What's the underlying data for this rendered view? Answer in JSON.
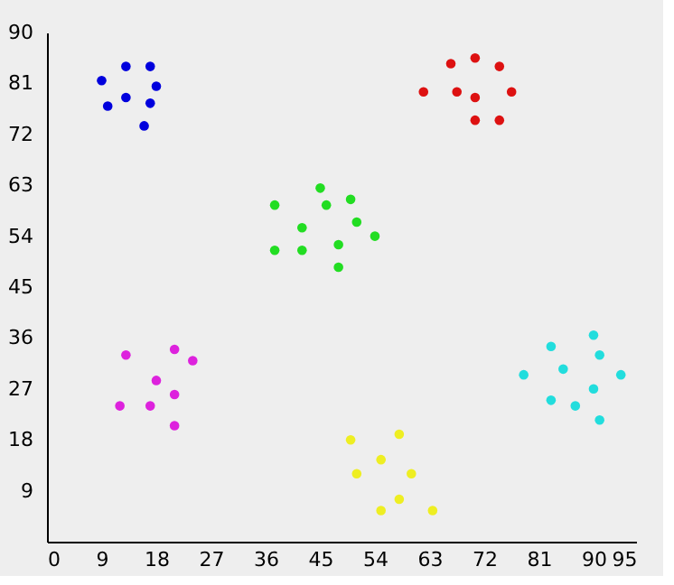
{
  "chart_data": {
    "type": "scatter",
    "marker": "circle",
    "grid": false,
    "legend": false,
    "xlim": [
      0,
      97
    ],
    "ylim": [
      0,
      90
    ],
    "xticks": [
      0,
      9,
      18,
      27,
      36,
      45,
      54,
      63,
      72,
      81,
      90,
      95
    ],
    "yticks": [
      9,
      18,
      27,
      36,
      45,
      54,
      63,
      72,
      81,
      90
    ],
    "series": [
      {
        "color": "#0000dd",
        "x": [
          9,
          13,
          17,
          18,
          13,
          17,
          10,
          16
        ],
        "values": [
          81.5,
          84,
          84,
          80.5,
          78.5,
          77.5,
          77,
          73.5
        ]
      },
      {
        "color": "#dd1111",
        "x": [
          62,
          66.5,
          70.5,
          74.5,
          67.5,
          70.5,
          76.5,
          70.5,
          74.5
        ],
        "values": [
          79.5,
          84.5,
          85.5,
          84,
          79.5,
          78.5,
          79.5,
          74.5,
          74.5
        ]
      },
      {
        "color": "#22dd22",
        "x": [
          37.5,
          45,
          42,
          37.5,
          42,
          46,
          50,
          51,
          54,
          48,
          48
        ],
        "values": [
          59.5,
          62.5,
          55.5,
          51.5,
          51.5,
          59.5,
          60.5,
          56.5,
          54,
          52.5,
          48.5
        ]
      },
      {
        "color": "#dd22dd",
        "x": [
          13,
          21,
          24,
          18,
          21,
          12,
          17,
          21
        ],
        "values": [
          33,
          34,
          32,
          28.5,
          26,
          24,
          24,
          20.5
        ]
      },
      {
        "color": "#22dddd",
        "x": [
          90,
          83,
          91,
          78.5,
          85,
          94.5,
          90,
          83,
          87,
          91
        ],
        "values": [
          36.5,
          34.5,
          33,
          29.5,
          30.5,
          29.5,
          27,
          25,
          24,
          21.5
        ]
      },
      {
        "color": "#eeee22",
        "x": [
          50,
          58,
          55,
          51,
          60,
          58,
          55,
          63.5
        ],
        "values": [
          18,
          19,
          14.5,
          12,
          12,
          7.5,
          5.5,
          5.5
        ]
      }
    ]
  }
}
